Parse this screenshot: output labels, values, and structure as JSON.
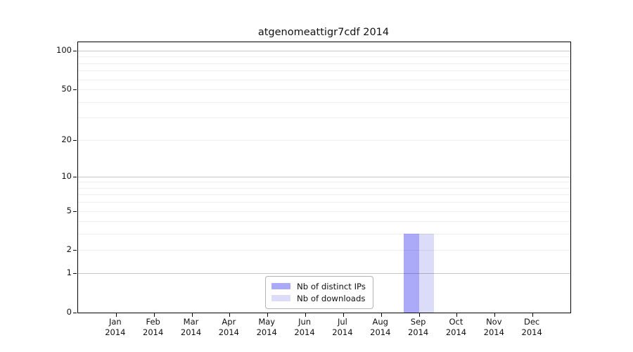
{
  "chart_data": {
    "type": "bar",
    "title": "atgenomeattigr7cdf 2014",
    "categories": [
      "Jan",
      "Feb",
      "Mar",
      "Apr",
      "May",
      "Jun",
      "Jul",
      "Aug",
      "Sep",
      "Oct",
      "Nov",
      "Dec"
    ],
    "year": "2014",
    "series": [
      {
        "name": "Nb of distinct IPs",
        "color": "#aaaaf8",
        "values": [
          0,
          0,
          0,
          0,
          0,
          0,
          0,
          0,
          3,
          0,
          0,
          0
        ]
      },
      {
        "name": "Nb of downloads",
        "color": "#dcdcf8",
        "values": [
          0,
          0,
          0,
          0,
          0,
          0,
          0,
          0,
          3,
          0,
          0,
          0
        ]
      }
    ],
    "yscale": "log10(value+1)",
    "ylim": [
      0,
      116
    ],
    "xlim": [
      -1,
      12
    ],
    "yticks": [
      0,
      1,
      2,
      5,
      10,
      20,
      50,
      100
    ],
    "grid": {
      "on": true,
      "major": [
        1,
        10,
        100
      ],
      "minor": [
        2,
        3,
        4,
        5,
        6,
        7,
        8,
        9,
        20,
        30,
        40,
        50,
        60,
        70,
        80,
        90
      ]
    },
    "bar_width_units": 0.4,
    "legend_position": "lower center"
  }
}
